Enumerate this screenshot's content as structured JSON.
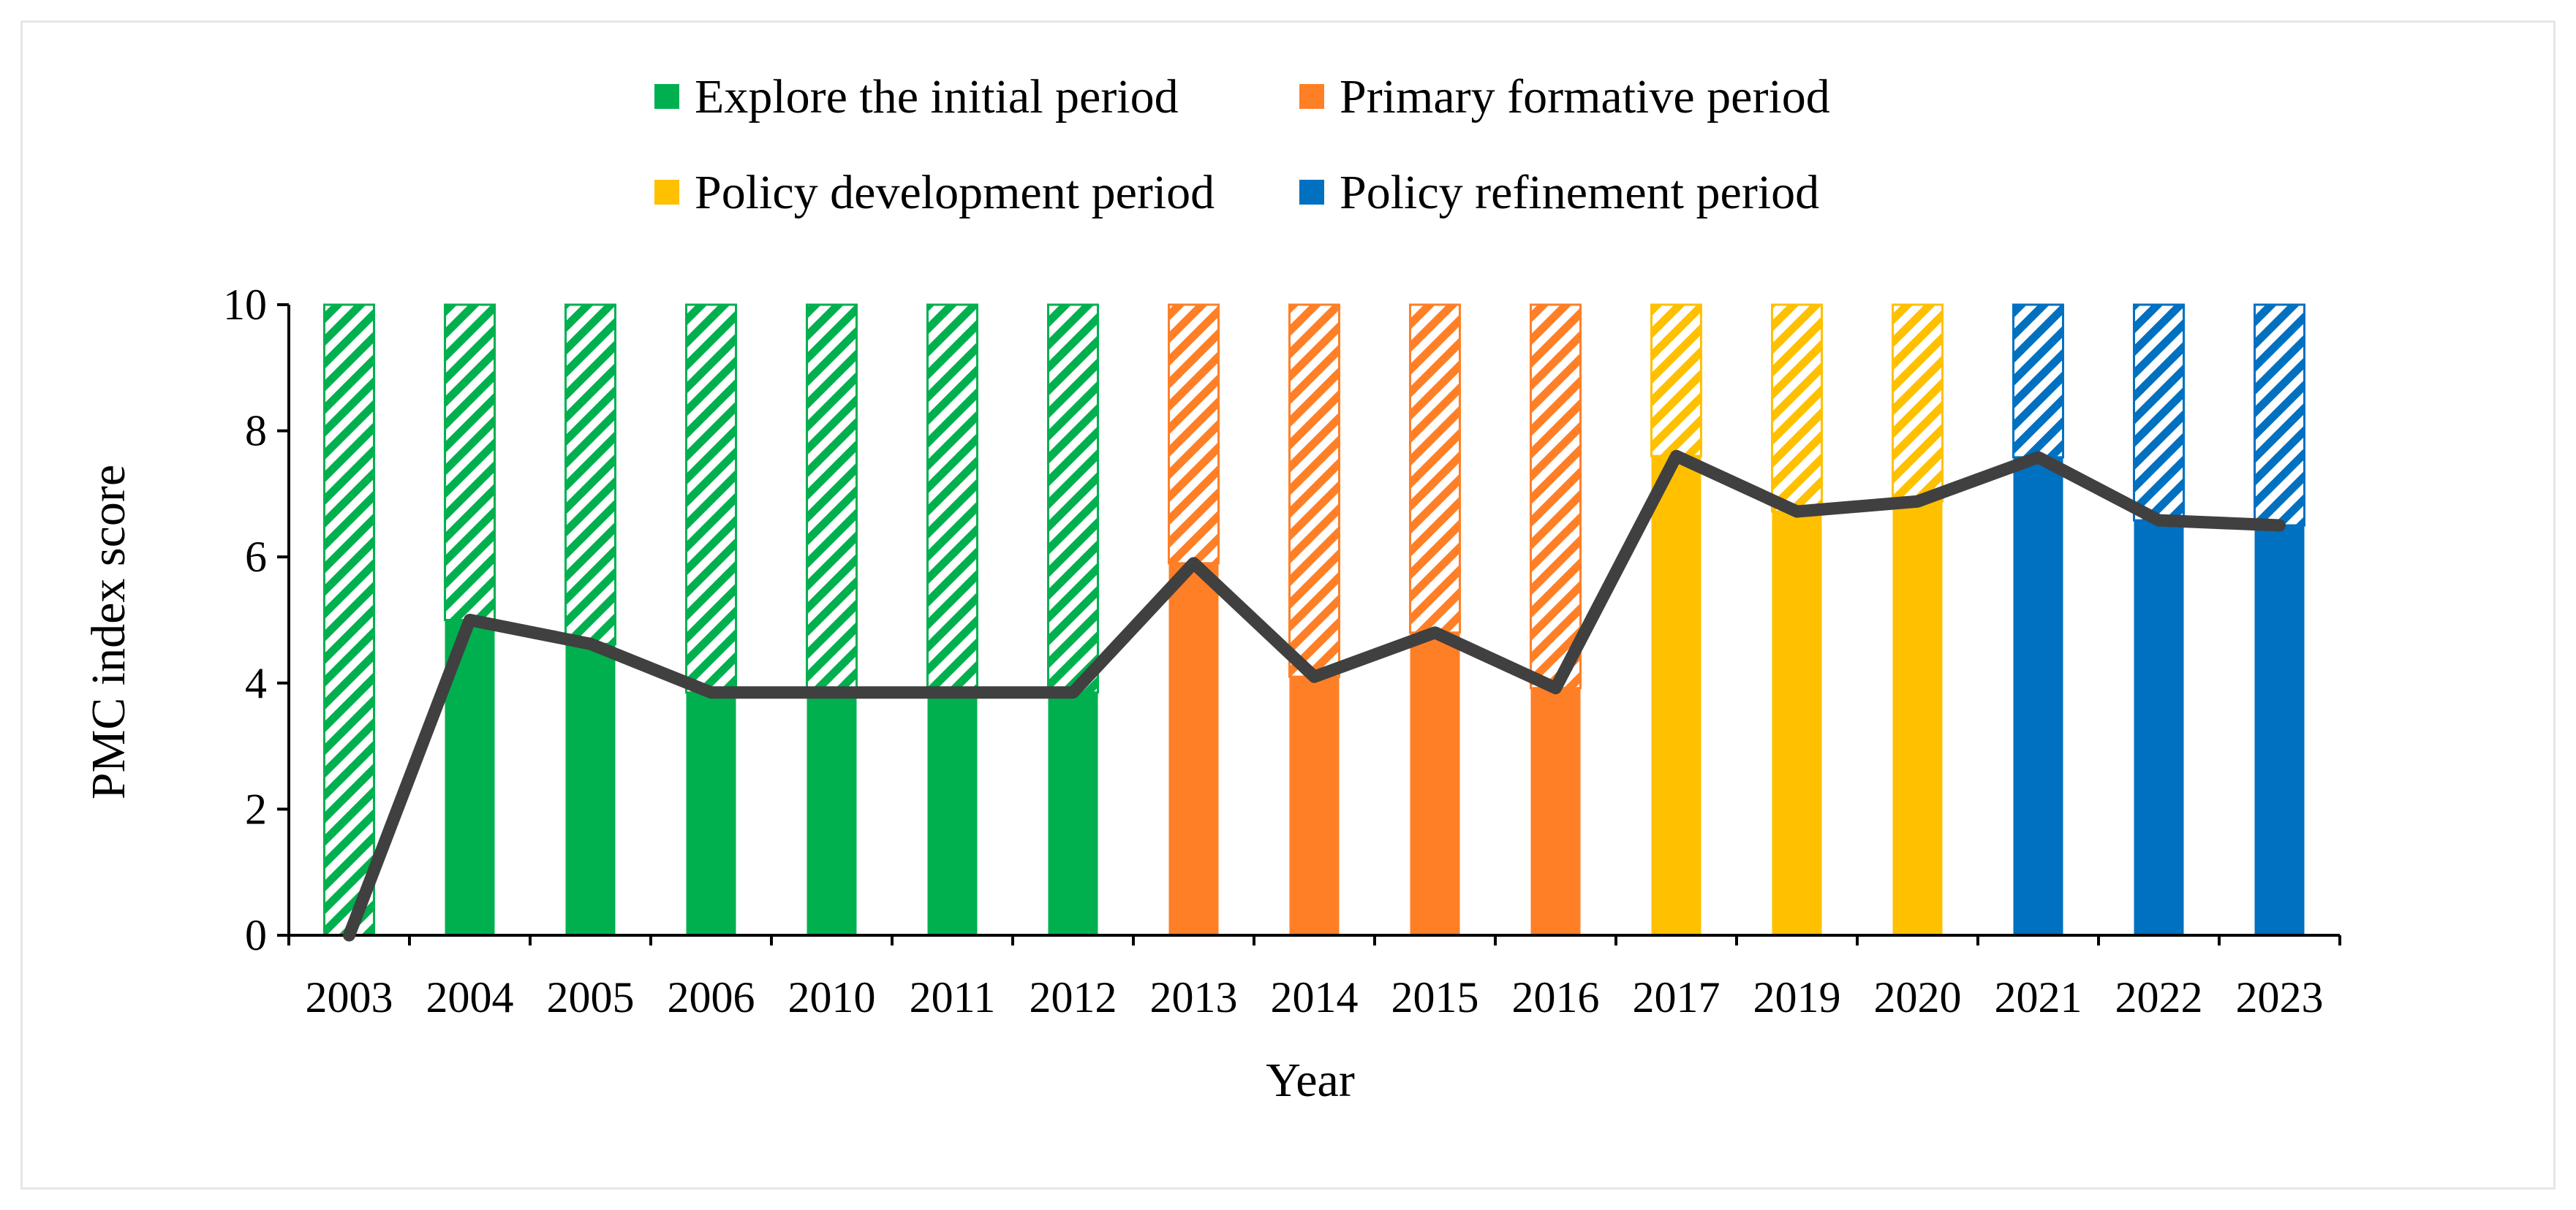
{
  "chart_data": {
    "type": "bar",
    "xlabel": "Year",
    "ylabel": "PMC index score",
    "ylim": [
      0,
      10
    ],
    "yticks": [
      "0",
      "2",
      "4",
      "6",
      "8",
      "10"
    ],
    "grid": false,
    "legend_position": "top",
    "categories": [
      "2003",
      "2004",
      "2005",
      "2006",
      "2010",
      "2011",
      "2012",
      "2013",
      "2014",
      "2015",
      "2016",
      "2017",
      "2019",
      "2020",
      "2021",
      "2022",
      "2023"
    ],
    "periods": [
      {
        "name": "Explore the initial period",
        "color": "#00b04f"
      },
      {
        "name": "Primary formative period",
        "color": "#ff7f27"
      },
      {
        "name": "Policy development period",
        "color": "#ffc000"
      },
      {
        "name": "Policy refinement period",
        "color": "#0070c0"
      }
    ],
    "category_period": [
      0,
      0,
      0,
      0,
      0,
      0,
      0,
      1,
      1,
      1,
      1,
      2,
      2,
      2,
      3,
      3,
      3
    ],
    "values": [
      0,
      5.0,
      4.62,
      3.85,
      3.85,
      3.85,
      3.85,
      5.9,
      4.1,
      4.8,
      3.92,
      7.6,
      6.72,
      6.88,
      7.58,
      6.58,
      6.5
    ],
    "bar_total": 10,
    "line_color": "#404040"
  }
}
